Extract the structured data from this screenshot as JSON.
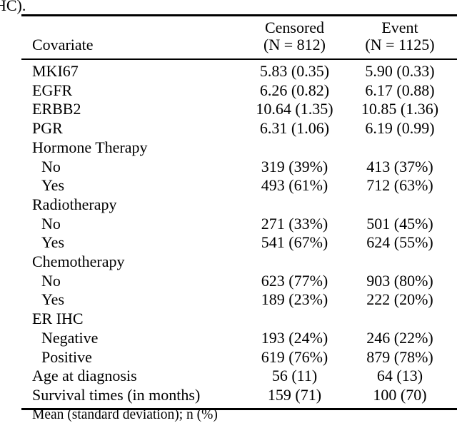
{
  "page": {
    "caption_fragment": "HC)."
  },
  "table": {
    "columns": {
      "covariate_label": "Covariate",
      "censored": {
        "title": "Censored",
        "n": "(N = 812)"
      },
      "event": {
        "title": "Event",
        "n": "(N = 1125)"
      }
    },
    "rows": [
      {
        "covariate": "MKI67",
        "censored": "5.83 (0.35)",
        "event": "5.90 (0.33)"
      },
      {
        "covariate": "EGFR",
        "censored": "6.26 (0.82)",
        "event": "6.17 (0.88)"
      },
      {
        "covariate": "ERBB2",
        "censored": "10.64 (1.35)",
        "event": "10.85 (1.36)"
      },
      {
        "covariate": "PGR",
        "censored": "6.31 (1.06)",
        "event": "6.19 (0.99)"
      },
      {
        "covariate": "Hormone Therapy",
        "censored": "",
        "event": ""
      },
      {
        "covariate": "No",
        "censored": "319 (39%)",
        "event": "413 (37%)"
      },
      {
        "covariate": "Yes",
        "censored": "493 (61%)",
        "event": "712 (63%)"
      },
      {
        "covariate": "Radiotherapy",
        "censored": "",
        "event": ""
      },
      {
        "covariate": "No",
        "censored": "271 (33%)",
        "event": "501 (45%)"
      },
      {
        "covariate": "Yes",
        "censored": "541 (67%)",
        "event": "624 (55%)"
      },
      {
        "covariate": "Chemotherapy",
        "censored": "",
        "event": ""
      },
      {
        "covariate": "No",
        "censored": "623 (77%)",
        "event": "903 (80%)"
      },
      {
        "covariate": "Yes",
        "censored": "189 (23%)",
        "event": "222 (20%)"
      },
      {
        "covariate": "ER IHC",
        "censored": "",
        "event": ""
      },
      {
        "covariate": "Negative",
        "censored": "193 (24%)",
        "event": "246 (22%)"
      },
      {
        "covariate": "Positive",
        "censored": "619 (76%)",
        "event": "879 (78%)"
      },
      {
        "covariate": "Age at diagnosis",
        "censored": "56 (11)",
        "event": "64 (13)"
      },
      {
        "covariate": "Survival times (in months)",
        "censored": "159 (71)",
        "event": "100 (70)"
      }
    ],
    "footnote": "Mean (standard deviation); n (%)"
  }
}
